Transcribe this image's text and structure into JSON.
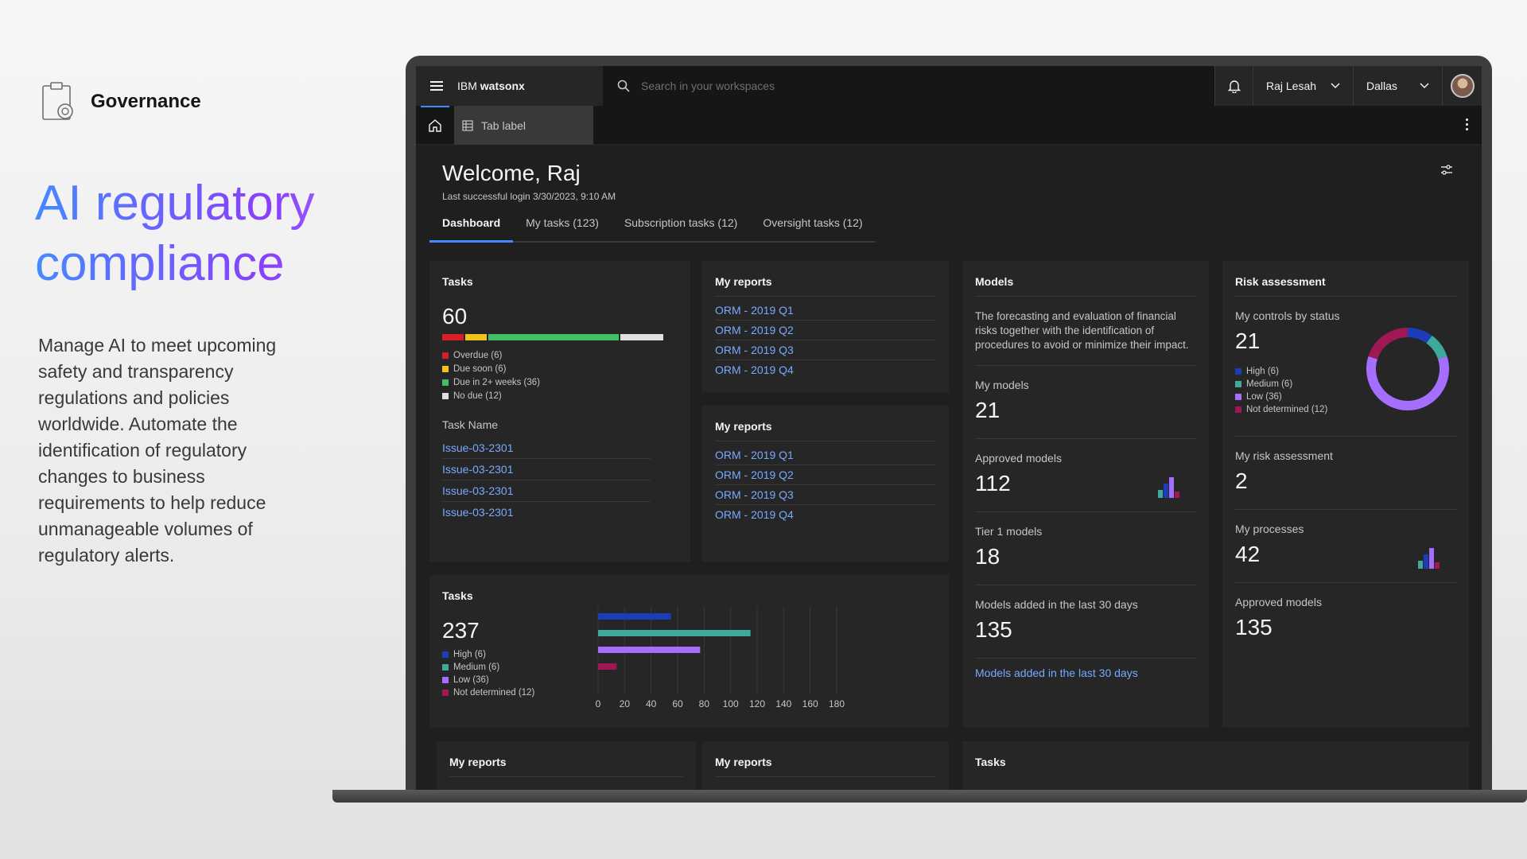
{
  "marketing": {
    "brand_icon": "governance-clipboard-icon",
    "brand_name": "Governance",
    "title_line1": "AI regulatory",
    "title_line2": "compliance",
    "description": "Manage AI to meet upcoming safety and transparency regulations and policies worldwide. Automate the identification of regulatory changes to business requirements to help reduce unmanageable volumes of regulatory alerts."
  },
  "header": {
    "product_prefix": "IBM",
    "product_name": "watsonx",
    "search_placeholder": "Search in your workspaces",
    "user_name": "Raj Lesah",
    "region": "Dallas"
  },
  "tabs": {
    "app_tab_label": "Tab label"
  },
  "page": {
    "welcome": "Welcome, Raj",
    "last_login": "Last successful login 3/30/2023, 9:10 AM",
    "tabs": [
      "Dashboard",
      "My tasks (123)",
      "Subscription tasks (12)",
      "Oversight tasks (12)"
    ]
  },
  "colors": {
    "overdue": "#da1e28",
    "due_soon": "#f1c21b",
    "due_2_weeks": "#42be65",
    "no_due": "#e0e0e0",
    "high": "#1d3cb8",
    "medium": "#3ea89b",
    "low": "#a56eff",
    "not_determined": "#9f1853"
  },
  "tasks_card": {
    "title": "Tasks",
    "total": "60",
    "segments": [
      {
        "label": "Overdue (6)",
        "value": 6
      },
      {
        "label": "Due soon (6)",
        "value": 6
      },
      {
        "label": "Due in 2+ weeks (36)",
        "value": 36
      },
      {
        "label": "No due (12)",
        "value": 12
      }
    ],
    "list_header": "Task Name",
    "items": [
      "Issue-03-2301",
      "Issue-03-2301",
      "Issue-03-2301",
      "Issue-03-2301"
    ]
  },
  "reports_1": {
    "title": "My reports",
    "items": [
      "ORM - 2019 Q1",
      "ORM - 2019 Q2",
      "ORM - 2019 Q3",
      "ORM - 2019 Q4"
    ]
  },
  "reports_2": {
    "title": "My reports",
    "items": [
      "ORM - 2019 Q1",
      "ORM - 2019 Q2",
      "ORM - 2019 Q3",
      "ORM - 2019 Q4"
    ]
  },
  "models": {
    "title": "Models",
    "description": "The forecasting and evaluation of financial risks together with the identification of procedures to avoid or minimize their impact.",
    "metrics": [
      {
        "label": "My models",
        "value": "21"
      },
      {
        "label": "Approved models",
        "value": "112"
      },
      {
        "label": "Tier 1 models",
        "value": "18"
      },
      {
        "label": "Models added in the last 30 days",
        "value": "135"
      }
    ],
    "link": "Models added in the last 30 days"
  },
  "risk": {
    "title": "Risk assessment",
    "controls_label": "My controls by status",
    "controls_value": "21",
    "legend": [
      "High (6)",
      "Medium (6)",
      "Low (36)",
      "Not determined (12)"
    ],
    "metrics": [
      {
        "label": "My risk assessment",
        "value": "2"
      },
      {
        "label": "My processes",
        "value": "42"
      },
      {
        "label": "Approved models",
        "value": "135"
      }
    ]
  },
  "tasks_chart_card": {
    "title": "Tasks",
    "total": "237",
    "legend": [
      "High (6)",
      "Medium (6)",
      "Low (36)",
      "Not determined (12)"
    ]
  },
  "bottom": {
    "reports_a": "My reports",
    "reports_b": "My reports",
    "tasks": "Tasks"
  },
  "chart_data": [
    {
      "type": "bar",
      "orientation": "horizontal",
      "categories": [
        "High",
        "Medium",
        "Low",
        "Not determined"
      ],
      "values": [
        55,
        115,
        77,
        14
      ],
      "xticks": [
        "0",
        "20",
        "40",
        "60",
        "80",
        "100",
        "120",
        "140",
        "160",
        "180"
      ],
      "xlim": [
        0,
        180
      ],
      "grid": true
    },
    {
      "type": "pie",
      "donut": true,
      "categories": [
        "High",
        "Medium",
        "Low",
        "Not determined"
      ],
      "values": [
        6,
        6,
        36,
        12
      ]
    }
  ]
}
